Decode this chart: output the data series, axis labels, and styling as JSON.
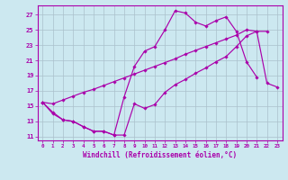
{
  "xlabel": "Windchill (Refroidissement éolien,°C)",
  "bg_color": "#cce8f0",
  "grid_color": "#aac0cc",
  "line_color": "#aa00aa",
  "xlim_min": -0.5,
  "xlim_max": 23.5,
  "ylim_min": 10.5,
  "ylim_max": 28.2,
  "yticks": [
    11,
    13,
    15,
    17,
    19,
    21,
    23,
    25,
    27
  ],
  "xticks": [
    0,
    1,
    2,
    3,
    4,
    5,
    6,
    7,
    8,
    9,
    10,
    11,
    12,
    13,
    14,
    15,
    16,
    17,
    18,
    19,
    20,
    21,
    22,
    23
  ],
  "line1_x": [
    0,
    1,
    2,
    3,
    4,
    5,
    6,
    7,
    8,
    9,
    10,
    11,
    12,
    13,
    14,
    15,
    16,
    17,
    18,
    19,
    20,
    21,
    22,
    23
  ],
  "line1_y": [
    15.5,
    14.0,
    13.2,
    13.0,
    12.3,
    11.7,
    11.7,
    11.2,
    11.2,
    15.3,
    14.7,
    15.2,
    16.8,
    17.8,
    18.5,
    19.3,
    20.0,
    20.8,
    21.5,
    22.8,
    24.2,
    24.8,
    24.8,
    null
  ],
  "line2_x": [
    0,
    1,
    2,
    3,
    4,
    5,
    6,
    7,
    8,
    9,
    10,
    11,
    12,
    13,
    14,
    15,
    16,
    17,
    18,
    19,
    20,
    21
  ],
  "line2_y": [
    15.5,
    14.2,
    13.2,
    13.0,
    12.3,
    11.7,
    11.7,
    11.2,
    16.2,
    20.2,
    22.2,
    22.8,
    25.0,
    27.5,
    27.2,
    26.0,
    25.5,
    26.2,
    26.7,
    24.8,
    20.8,
    18.8
  ],
  "line3_x": [
    0,
    1,
    2,
    3,
    4,
    5,
    6,
    7,
    8,
    9,
    10,
    11,
    12,
    13,
    14,
    15,
    16,
    17,
    18,
    19,
    20,
    21,
    22,
    23
  ],
  "line3_y": [
    15.5,
    15.3,
    15.8,
    16.3,
    16.8,
    17.2,
    17.7,
    18.2,
    18.7,
    19.2,
    19.7,
    20.2,
    20.7,
    21.2,
    21.8,
    22.3,
    22.8,
    23.3,
    23.8,
    24.3,
    25.0,
    24.8,
    18.0,
    17.5
  ]
}
